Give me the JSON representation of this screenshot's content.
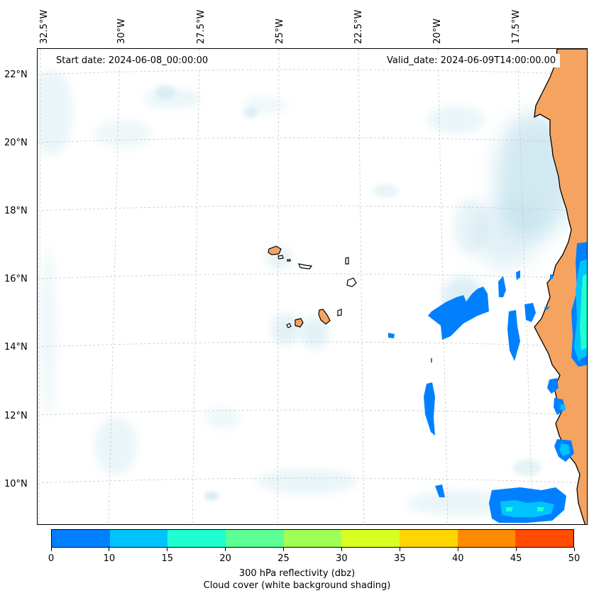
{
  "header": {
    "start_date": "Start date: 2024-06-08_00:00:00",
    "valid_date": "Valid_date: 2024-06-09T14:00:00.00"
  },
  "axes": {
    "lon_labels": [
      "32.5°W",
      "30°W",
      "27.5°W",
      "25°W",
      "22.5°W",
      "20°W",
      "17.5°W"
    ],
    "lat_labels": [
      "22°N",
      "20°N",
      "18°N",
      "16°N",
      "14°N",
      "12°N",
      "10°N"
    ]
  },
  "colorbar": {
    "ticks": [
      "0",
      "10",
      "15",
      "20",
      "25",
      "30",
      "35",
      "40",
      "45",
      "50"
    ],
    "colors": [
      "#0080ff",
      "#00c4ff",
      "#1effd2",
      "#5cff94",
      "#a0ff55",
      "#d8ff22",
      "#ffd500",
      "#ff8c00",
      "#ff4c00"
    ],
    "label_line1": "300 hPa reflectivity (dbz)",
    "label_line2": "Cloud cover (white background shading)"
  },
  "map": {
    "land_color": "#f4a460",
    "cloud_color": "#add8e6",
    "reflectivity_color": "#0080ff",
    "region": "Cape Verde Islands and West African coast"
  }
}
